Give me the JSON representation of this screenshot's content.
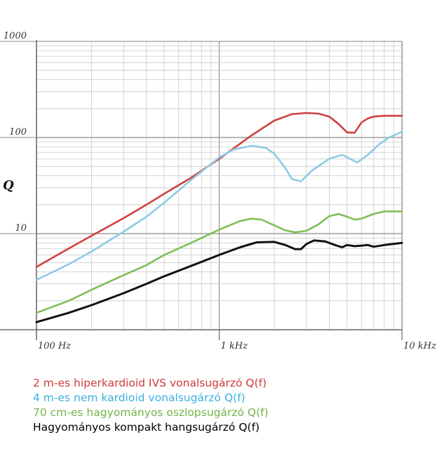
{
  "chart_data": {
    "type": "line",
    "title": "",
    "xlabel": "",
    "ylabel": "Q",
    "x_scale": "log",
    "y_scale": "log",
    "xlim": [
      100,
      10000
    ],
    "ylim": [
      1,
      1000
    ],
    "grid": true,
    "legend_position": "bottom",
    "x_ticks": [
      {
        "value": 100,
        "label": "100 Hz"
      },
      {
        "value": 1000,
        "label": "1 kHz"
      },
      {
        "value": 10000,
        "label": "10 kHz"
      }
    ],
    "y_ticks": [
      {
        "value": 1000,
        "label": "1000"
      },
      {
        "value": 100,
        "label": "100"
      },
      {
        "value": 10,
        "label": "10"
      }
    ],
    "series": [
      {
        "name": "2 m-es hiperkardioid IVS vonalsugárzó Q(f)",
        "color": "#d04040",
        "x": [
          100,
          150,
          200,
          300,
          400,
          500,
          700,
          1000,
          1500,
          2000,
          2500,
          3000,
          3500,
          4000,
          4500,
          5000,
          5500,
          6000,
          6500,
          7000,
          8000,
          9000,
          10000
        ],
        "y": [
          4.5,
          7,
          9.5,
          14.5,
          20,
          26,
          38,
          60,
          105,
          150,
          175,
          180,
          177,
          165,
          138,
          113,
          112,
          143,
          158,
          165,
          168,
          168,
          168
        ]
      },
      {
        "name": "4 m-es nem kardioid vonalsugárzó Q(f)",
        "color": "#8ccce4",
        "x": [
          100,
          150,
          200,
          300,
          400,
          500,
          700,
          1000,
          1200,
          1500,
          1800,
          2000,
          2300,
          2500,
          2800,
          3200,
          4000,
          4700,
          5200,
          5700,
          6500,
          7500,
          8500,
          10000
        ],
        "y": [
          3.3,
          4.8,
          6.5,
          10.5,
          15,
          21,
          36,
          62,
          75,
          82,
          78,
          68,
          48,
          37,
          35,
          45,
          60,
          66,
          60,
          55,
          66,
          85,
          100,
          115
        ]
      },
      {
        "name": "70 cm-es hagyományos oszlopsugárzó Q(f)",
        "color": "#80be58",
        "x": [
          100,
          150,
          200,
          300,
          400,
          500,
          700,
          1000,
          1300,
          1500,
          1700,
          2000,
          2300,
          2600,
          3000,
          3500,
          4000,
          4500,
          5000,
          5500,
          6000,
          7000,
          8000,
          10000
        ],
        "y": [
          1.5,
          2,
          2.6,
          3.7,
          4.7,
          6,
          8,
          11,
          13.5,
          14.3,
          14,
          12.2,
          10.8,
          10.3,
          10.7,
          12.5,
          15.2,
          16,
          15,
          14,
          14.3,
          16,
          17,
          17
        ]
      },
      {
        "name": "Hagyományos kompakt hangsugárzó Q(f)",
        "color": "#111111",
        "x": [
          100,
          150,
          200,
          300,
          400,
          500,
          700,
          1000,
          1300,
          1600,
          2000,
          2300,
          2600,
          2800,
          3000,
          3300,
          3800,
          4300,
          4700,
          5000,
          5500,
          6000,
          6500,
          7000,
          8000,
          10000
        ],
        "y": [
          1.2,
          1.5,
          1.8,
          2.4,
          3,
          3.6,
          4.6,
          6,
          7.2,
          8.1,
          8.2,
          7.6,
          6.9,
          6.9,
          7.8,
          8.5,
          8.3,
          7.6,
          7.2,
          7.6,
          7.4,
          7.5,
          7.6,
          7.3,
          7.6,
          8
        ]
      }
    ]
  }
}
